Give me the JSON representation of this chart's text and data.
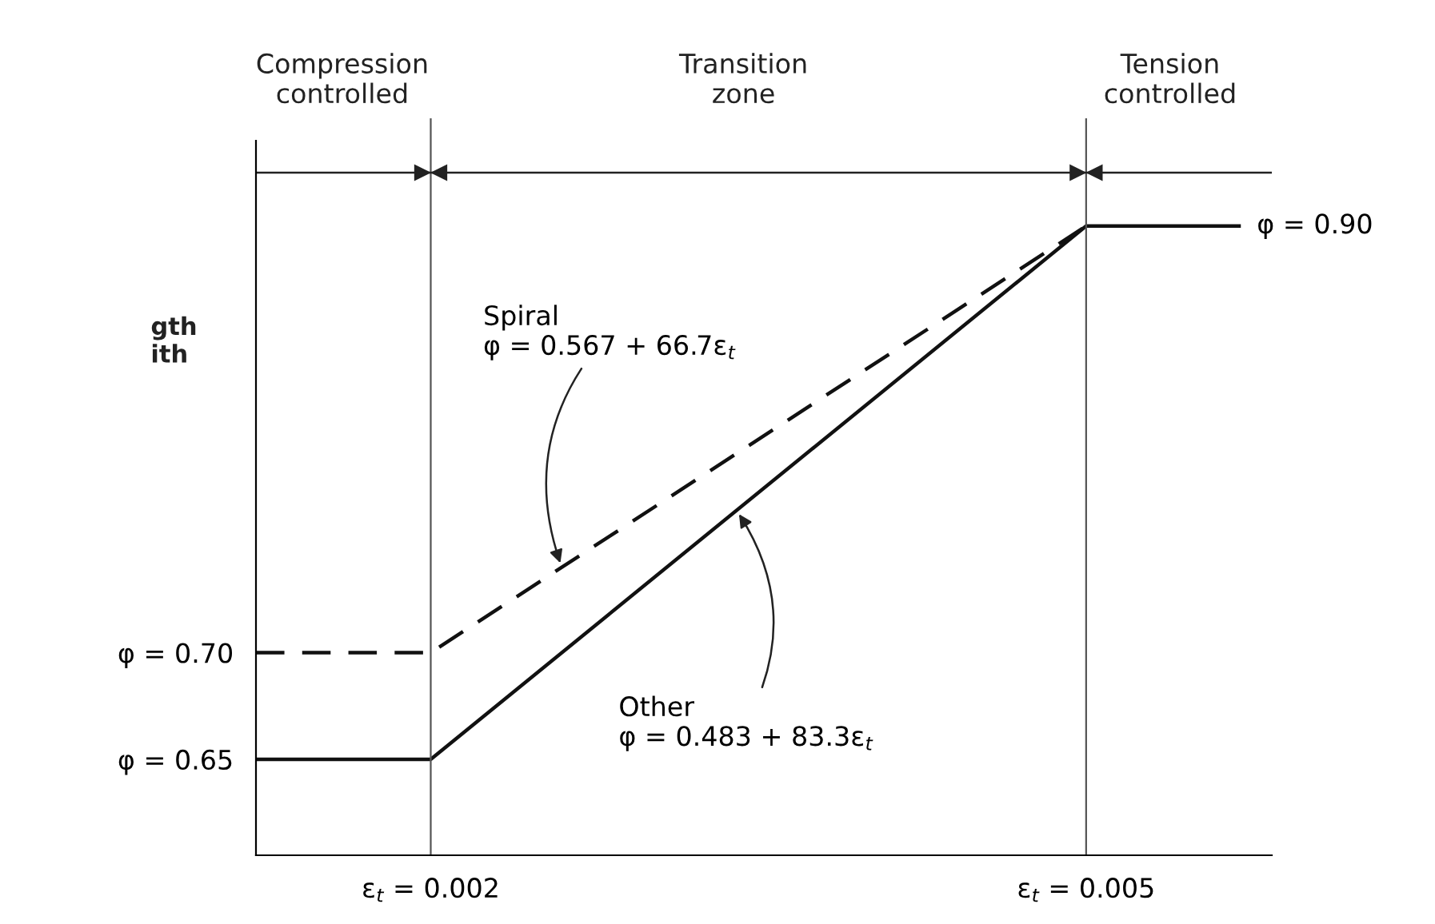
{
  "chart_data": {
    "type": "line",
    "xlim": [
      0.0012,
      0.00585
    ],
    "ylim": [
      0.605,
      0.94
    ],
    "xticks": [
      {
        "value": 0.002,
        "label": "ε$_{t}$ = 0.002"
      },
      {
        "value": 0.005,
        "label": "ε$_{t}$ = 0.005"
      }
    ],
    "yticks": [
      {
        "value": 0.65,
        "label": "φ = 0.65"
      },
      {
        "value": 0.7,
        "label": "φ = 0.70"
      }
    ],
    "series": [
      {
        "color": "#111111",
        "line_style": "solid",
        "x": [
          0.0012,
          0.002,
          0.005,
          0.0057
        ],
        "values": [
          0.65,
          0.65,
          0.9,
          0.9
        ]
      },
      {
        "color": "#111111",
        "line_style": "dashed",
        "x": [
          0.0012,
          0.002,
          0.005
        ],
        "values": [
          0.7,
          0.7,
          0.9
        ]
      }
    ],
    "ref_lines": [
      {
        "axis": "x",
        "value": 0.002,
        "color": "#555555"
      },
      {
        "axis": "x",
        "value": 0.005,
        "color": "#555555"
      },
      {
        "axis": "y",
        "value": 0.925,
        "color": "#222222"
      }
    ],
    "annotations": [
      {
        "text": "Spiral\nφ = 0.567 + 66.7ε$_{t}$",
        "x": 0.0026,
        "y": 0.74
      },
      {
        "text": "Other\nφ = 0.483 + 83.3ε$_{t}$",
        "x": 0.0034,
        "y": 0.7667
      },
      {
        "text": "φ = 0.90",
        "x": 0.0057,
        "y": 0.9
      },
      "Compression\ncontrolled",
      "Transition\nzone",
      "Tension\ncontrolled",
      "gth\nith"
    ],
    "grid": false,
    "legend": false
  }
}
